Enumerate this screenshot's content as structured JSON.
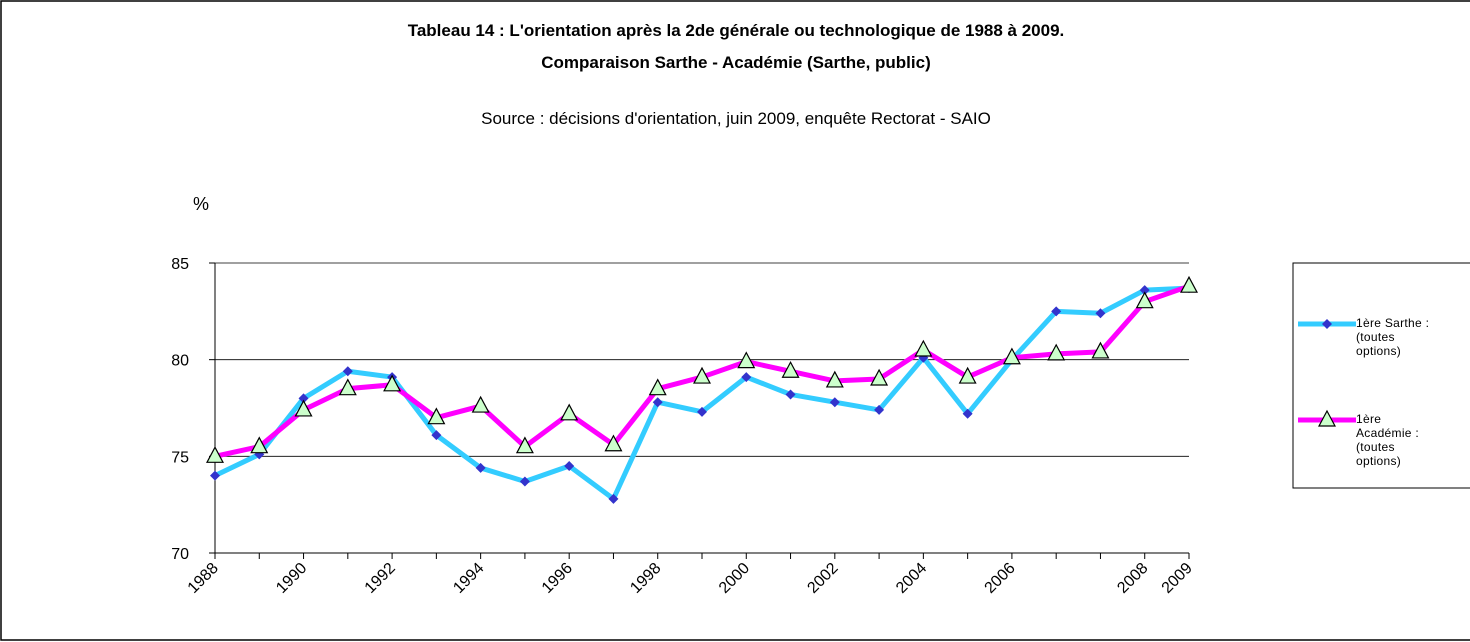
{
  "chart_data": {
    "type": "line",
    "title": [
      "Tableau 14 : L'orientation après la 2de générale ou technologique de 1988 à 2009.",
      "Comparaison Sarthe - Académie (Sarthe, public)"
    ],
    "subtitle": "Source : décisions d'orientation, juin 2009, enquête Rectorat - SAIO",
    "y_label": "%",
    "categories": [
      "1988",
      null,
      "1990",
      null,
      "1992",
      null,
      "1994",
      null,
      "1996",
      null,
      "1998",
      null,
      "2000",
      null,
      "2002",
      null,
      "2004",
      null,
      "2006",
      null,
      null,
      "2008",
      "2009"
    ],
    "series": [
      {
        "name": "1ère Sarthe : (toutes options)",
        "color": "#33ccff",
        "marker_color": "#3333cc",
        "marker": "diamond",
        "values": [
          74.0,
          75.1,
          78.0,
          79.4,
          79.1,
          76.1,
          74.4,
          73.7,
          74.5,
          72.8,
          77.8,
          77.3,
          79.1,
          78.2,
          77.8,
          77.4,
          80.1,
          77.2,
          80.0,
          82.5,
          82.4,
          83.6,
          83.7
        ]
      },
      {
        "name": "1ère Académie : (toutes options)",
        "color": "#ff00ff",
        "marker_color": "#ccffcc",
        "marker": "triangle",
        "values": [
          75.0,
          75.5,
          77.4,
          78.5,
          78.7,
          77.0,
          77.6,
          75.5,
          77.2,
          75.6,
          78.5,
          79.1,
          79.9,
          79.4,
          78.9,
          79.0,
          80.5,
          79.1,
          80.1,
          80.3,
          80.4,
          83.0,
          83.8
        ]
      }
    ],
    "ylim": [
      70,
      85
    ],
    "yticks": [
      70,
      75,
      80,
      85
    ],
    "grid": true,
    "legend": "right"
  }
}
